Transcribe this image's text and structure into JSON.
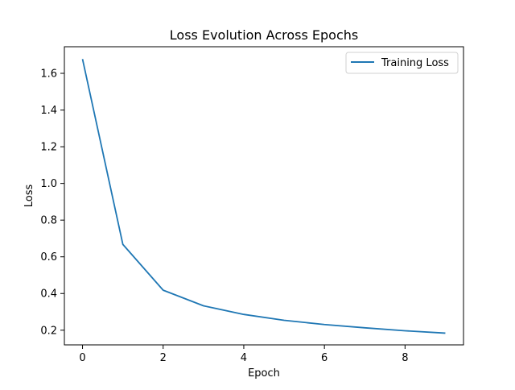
{
  "chart_data": {
    "type": "line",
    "title": "Loss Evolution Across Epochs",
    "xlabel": "Epoch",
    "ylabel": "Loss",
    "x": [
      0,
      1,
      2,
      3,
      4,
      5,
      6,
      7,
      8,
      9
    ],
    "series": [
      {
        "name": "Training Loss",
        "color": "#1f77b4",
        "values": [
          1.678,
          0.668,
          0.418,
          0.333,
          0.286,
          0.254,
          0.231,
          0.213,
          0.197,
          0.184
        ]
      }
    ],
    "xlim": [
      -0.45,
      9.45
    ],
    "ylim": [
      0.12,
      1.745
    ],
    "xticks": [
      0,
      2,
      4,
      6,
      8
    ],
    "yticks": [
      0.2,
      0.4,
      0.6,
      0.8,
      1.0,
      1.2,
      1.4,
      1.6
    ],
    "xtick_labels": [
      "0",
      "2",
      "4",
      "6",
      "8"
    ],
    "ytick_labels": [
      "0.2",
      "0.4",
      "0.6",
      "0.8",
      "1.0",
      "1.2",
      "1.4",
      "1.6"
    ],
    "grid": false,
    "legend_position": "top-right"
  }
}
